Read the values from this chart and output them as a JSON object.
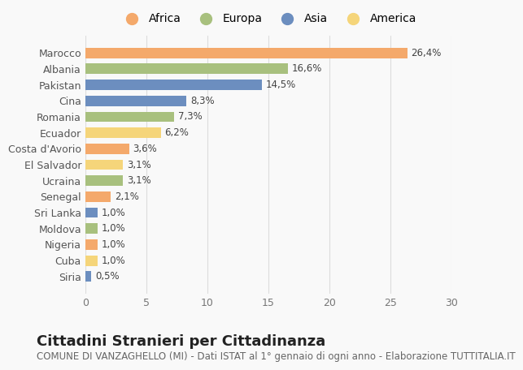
{
  "countries": [
    "Marocco",
    "Albania",
    "Pakistan",
    "Cina",
    "Romania",
    "Ecuador",
    "Costa d'Avorio",
    "El Salvador",
    "Ucraina",
    "Senegal",
    "Sri Lanka",
    "Moldova",
    "Nigeria",
    "Cuba",
    "Siria"
  ],
  "values": [
    26.4,
    16.6,
    14.5,
    8.3,
    7.3,
    6.2,
    3.6,
    3.1,
    3.1,
    2.1,
    1.0,
    1.0,
    1.0,
    1.0,
    0.5
  ],
  "labels": [
    "26,4%",
    "16,6%",
    "14,5%",
    "8,3%",
    "7,3%",
    "6,2%",
    "3,6%",
    "3,1%",
    "3,1%",
    "2,1%",
    "1,0%",
    "1,0%",
    "1,0%",
    "1,0%",
    "0,5%"
  ],
  "continents": [
    "Africa",
    "Europa",
    "Asia",
    "Asia",
    "Europa",
    "America",
    "Africa",
    "America",
    "Europa",
    "Africa",
    "Asia",
    "Europa",
    "Africa",
    "America",
    "Asia"
  ],
  "continent_colors": {
    "Africa": "#F4A96B",
    "Europa": "#A8C07E",
    "Asia": "#6C8EBF",
    "America": "#F5D57A"
  },
  "legend_order": [
    "Africa",
    "Europa",
    "Asia",
    "America"
  ],
  "legend_colors": [
    "#F4A96B",
    "#A8C07E",
    "#6C8EBF",
    "#F5D57A"
  ],
  "xlim": [
    0,
    30
  ],
  "xticks": [
    0,
    5,
    10,
    15,
    20,
    25,
    30
  ],
  "title": "Cittadini Stranieri per Cittadinanza",
  "subtitle": "COMUNE DI VANZAGHELLO (MI) - Dati ISTAT al 1° gennaio di ogni anno - Elaborazione TUTTITALIA.IT",
  "background_color": "#f9f9f9",
  "bar_height": 0.65,
  "title_fontsize": 13,
  "subtitle_fontsize": 8.5,
  "label_fontsize": 8.5,
  "tick_fontsize": 9,
  "legend_fontsize": 10
}
